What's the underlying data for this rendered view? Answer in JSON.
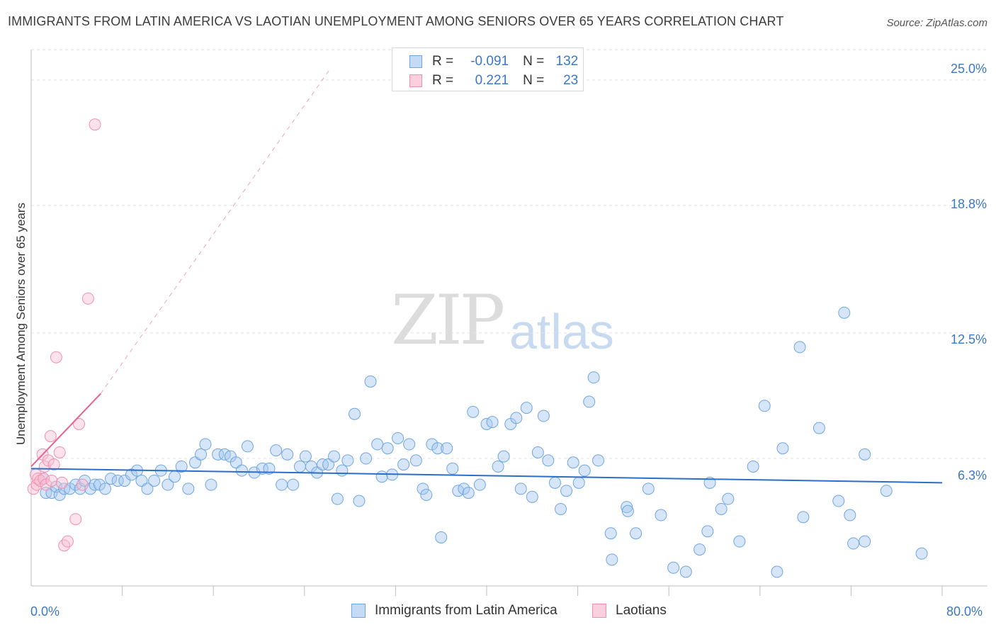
{
  "header": {
    "title": "IMMIGRANTS FROM LATIN AMERICA VS LAOTIAN UNEMPLOYMENT AMONG SENIORS OVER 65 YEARS CORRELATION CHART",
    "source": "Source: ZipAtlas.com"
  },
  "watermark": {
    "zip": "ZIP",
    "atlas": "atlas"
  },
  "legend": {
    "rows": [
      {
        "r_label": "R =",
        "r_value": "-0.091",
        "n_label": "N =",
        "n_value": "132",
        "color": "#6fa6e0"
      },
      {
        "r_label": "R =",
        "r_value": "0.221",
        "n_label": "N =",
        "n_value": "23",
        "color": "#f090ae"
      }
    ]
  },
  "chart_data": {
    "type": "scatter",
    "title": "IMMIGRANTS FROM LATIN AMERICA VS LAOTIAN UNEMPLOYMENT AMONG SENIORS OVER 65 YEARS CORRELATION CHART",
    "xlabel": "",
    "ylabel": "Unemployment Among Seniors over 65 years",
    "xlim": [
      0,
      80
    ],
    "ylim": [
      0,
      26.5
    ],
    "x_tick_labels": [
      "0.0%",
      "80.0%"
    ],
    "y_tick_labels": [
      "6.3%",
      "12.5%",
      "18.8%",
      "25.0%"
    ],
    "y_ticks": [
      6.3,
      12.5,
      18.8,
      25.0
    ],
    "x_minor_ticks": [
      8,
      16,
      24,
      32,
      40,
      48,
      56,
      64,
      72,
      80
    ],
    "grid": true,
    "legend_position": "top-center",
    "series": [
      {
        "name": "Immigrants from Latin America",
        "color": "#6fa6e0",
        "trend": {
          "x": [
            0,
            80
          ],
          "y": [
            5.8,
            5.1
          ],
          "style": "solid"
        },
        "points": [
          [
            1.1,
            5.3
          ],
          [
            1.3,
            4.6
          ],
          [
            1.8,
            4.6
          ],
          [
            2.2,
            4.9
          ],
          [
            2.5,
            4.5
          ],
          [
            2.9,
            4.8
          ],
          [
            3.4,
            4.8
          ],
          [
            3.9,
            5.0
          ],
          [
            4.3,
            4.8
          ],
          [
            4.7,
            5.2
          ],
          [
            5.2,
            4.8
          ],
          [
            5.6,
            5.0
          ],
          [
            6.0,
            5.0
          ],
          [
            6.5,
            4.8
          ],
          [
            7.0,
            5.3
          ],
          [
            7.6,
            5.2
          ],
          [
            8.2,
            5.2
          ],
          [
            8.8,
            5.5
          ],
          [
            9.3,
            5.7
          ],
          [
            9.7,
            5.2
          ],
          [
            10.2,
            4.8
          ],
          [
            10.8,
            5.2
          ],
          [
            11.4,
            5.7
          ],
          [
            12.0,
            5.0
          ],
          [
            12.6,
            5.4
          ],
          [
            13.2,
            5.9
          ],
          [
            13.8,
            4.8
          ],
          [
            14.4,
            6.1
          ],
          [
            14.9,
            6.5
          ],
          [
            15.3,
            7.0
          ],
          [
            15.8,
            5.0
          ],
          [
            16.4,
            6.5
          ],
          [
            17.0,
            6.5
          ],
          [
            17.5,
            6.4
          ],
          [
            18.0,
            6.1
          ],
          [
            18.5,
            5.7
          ],
          [
            19.0,
            6.9
          ],
          [
            19.6,
            5.6
          ],
          [
            20.3,
            5.8
          ],
          [
            20.9,
            5.8
          ],
          [
            21.5,
            6.7
          ],
          [
            22.0,
            5.0
          ],
          [
            22.5,
            6.5
          ],
          [
            23.0,
            5.0
          ],
          [
            23.6,
            5.9
          ],
          [
            24.1,
            6.4
          ],
          [
            24.6,
            5.9
          ],
          [
            25.1,
            5.6
          ],
          [
            25.6,
            6.0
          ],
          [
            26.1,
            6.0
          ],
          [
            26.6,
            6.4
          ],
          [
            26.9,
            4.3
          ],
          [
            27.3,
            5.7
          ],
          [
            27.8,
            6.2
          ],
          [
            28.4,
            8.5
          ],
          [
            28.8,
            4.2
          ],
          [
            29.4,
            6.3
          ],
          [
            29.8,
            10.1
          ],
          [
            30.4,
            7.0
          ],
          [
            30.8,
            5.4
          ],
          [
            31.3,
            6.8
          ],
          [
            31.7,
            5.5
          ],
          [
            32.2,
            7.3
          ],
          [
            32.7,
            6.0
          ],
          [
            33.2,
            7.0
          ],
          [
            33.8,
            6.2
          ],
          [
            34.4,
            4.8
          ],
          [
            34.7,
            4.5
          ],
          [
            35.2,
            7.0
          ],
          [
            35.7,
            6.8
          ],
          [
            36.0,
            2.4
          ],
          [
            36.5,
            6.8
          ],
          [
            37.0,
            5.8
          ],
          [
            37.5,
            4.7
          ],
          [
            38.0,
            4.8
          ],
          [
            38.4,
            4.6
          ],
          [
            38.8,
            8.6
          ],
          [
            39.4,
            5.0
          ],
          [
            40.0,
            8.0
          ],
          [
            40.5,
            8.1
          ],
          [
            41.0,
            5.9
          ],
          [
            41.5,
            6.4
          ],
          [
            42.1,
            8.0
          ],
          [
            42.6,
            8.3
          ],
          [
            43.0,
            4.8
          ],
          [
            43.5,
            8.8
          ],
          [
            44.0,
            4.4
          ],
          [
            44.5,
            6.6
          ],
          [
            45.0,
            8.4
          ],
          [
            45.4,
            6.2
          ],
          [
            46.0,
            5.1
          ],
          [
            46.5,
            3.8
          ],
          [
            47.0,
            4.7
          ],
          [
            47.6,
            6.1
          ],
          [
            48.1,
            5.1
          ],
          [
            48.6,
            5.7
          ],
          [
            49.0,
            9.1
          ],
          [
            49.4,
            10.3
          ],
          [
            49.8,
            6.2
          ],
          [
            50.9,
            2.6
          ],
          [
            51.0,
            1.3
          ],
          [
            52.3,
            3.9
          ],
          [
            52.4,
            3.7
          ],
          [
            53.1,
            2.6
          ],
          [
            54.2,
            4.8
          ],
          [
            55.3,
            3.5
          ],
          [
            56.4,
            0.9
          ],
          [
            57.5,
            0.7
          ],
          [
            58.7,
            1.8
          ],
          [
            59.4,
            2.7
          ],
          [
            59.6,
            5.1
          ],
          [
            60.6,
            3.8
          ],
          [
            61.2,
            4.3
          ],
          [
            62.2,
            2.2
          ],
          [
            63.4,
            5.9
          ],
          [
            64.4,
            8.9
          ],
          [
            65.5,
            0.7
          ],
          [
            66.0,
            6.8
          ],
          [
            67.5,
            11.8
          ],
          [
            67.8,
            3.4
          ],
          [
            69.2,
            7.8
          ],
          [
            70.9,
            4.2
          ],
          [
            71.4,
            13.5
          ],
          [
            71.9,
            3.5
          ],
          [
            72.2,
            2.1
          ],
          [
            73.2,
            6.5
          ],
          [
            73.2,
            2.2
          ],
          [
            75.1,
            4.7
          ],
          [
            78.2,
            1.6
          ]
        ]
      },
      {
        "name": "Laotians",
        "color": "#f090ae",
        "trend": {
          "x": [
            0,
            6.1
          ],
          "y": [
            5.9,
            9.5
          ],
          "style": "solid",
          "extended": {
            "x": [
              6.1,
              26.2
            ],
            "y": [
              9.5,
              25.5
            ],
            "style": "dashed"
          }
        },
        "points": [
          [
            0.2,
            4.8
          ],
          [
            0.4,
            5.5
          ],
          [
            0.5,
            5.0
          ],
          [
            0.6,
            5.3
          ],
          [
            0.8,
            5.2
          ],
          [
            1.0,
            6.5
          ],
          [
            1.1,
            5.3
          ],
          [
            1.2,
            5.9
          ],
          [
            1.3,
            5.0
          ],
          [
            1.5,
            6.2
          ],
          [
            1.7,
            7.4
          ],
          [
            1.8,
            5.2
          ],
          [
            2.0,
            6.0
          ],
          [
            2.2,
            11.3
          ],
          [
            2.5,
            6.6
          ],
          [
            2.7,
            5.1
          ],
          [
            2.9,
            2.0
          ],
          [
            3.2,
            2.2
          ],
          [
            3.9,
            3.3
          ],
          [
            4.2,
            8.0
          ],
          [
            4.5,
            5.0
          ],
          [
            5.0,
            14.2
          ],
          [
            5.6,
            22.8
          ]
        ]
      }
    ]
  },
  "bottom_legend": {
    "items": [
      {
        "label": "Immigrants from Latin America",
        "color": "#6fa6e0"
      },
      {
        "label": "Laotians",
        "color": "#f090ae"
      }
    ]
  }
}
